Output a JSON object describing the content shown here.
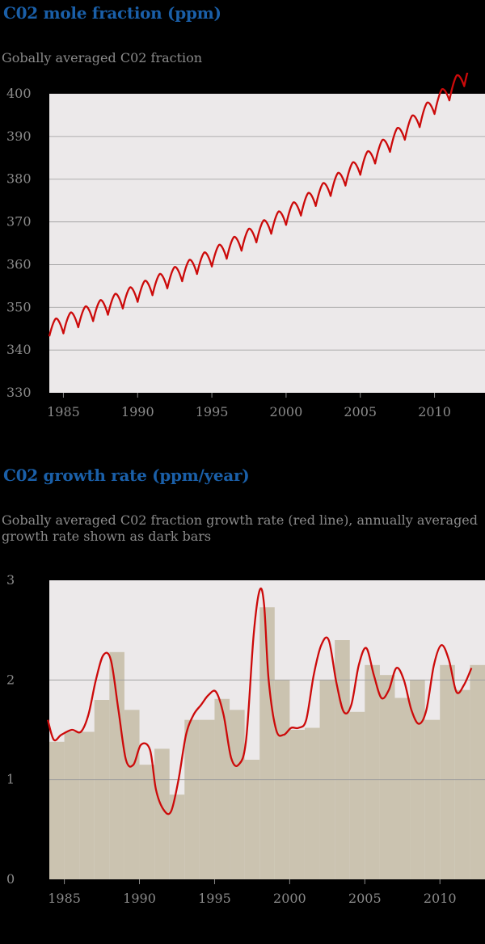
{
  "chart_data": [
    {
      "type": "line",
      "title": "C02 mole fraction (ppm)",
      "subtitle": "Gobally averaged C02 fraction",
      "xlabel": "",
      "ylabel": "",
      "xlim": [
        1984.05,
        2013.4
      ],
      "ylim": [
        330,
        400
      ],
      "yticks": [
        400,
        390,
        380,
        370,
        360,
        350,
        340,
        330
      ],
      "xticks": [
        1985,
        1990,
        1995,
        2000,
        2005,
        2010
      ],
      "grid": true,
      "trend": {
        "start": 1984.0,
        "base": 344.6,
        "coefs": [
          1.4,
          0.006,
          0.0007
        ]
      },
      "seasonal_amplitude": 4.2,
      "series": [
        {
          "color": "#cc0a0a"
        }
      ]
    },
    {
      "type": "bar",
      "title": "C02 growth rate (ppm/year)",
      "subtitle": "Gobally averaged C02 fraction growth rate (red line), annually averaged growth rate shown as dark bars",
      "xlabel": "",
      "ylabel": "",
      "xlim": [
        1984.0,
        2013.0
      ],
      "ylim": [
        0,
        3
      ],
      "yticks": [
        3,
        2,
        1,
        0
      ],
      "xticks": [
        1985,
        1990,
        1995,
        2000,
        2005,
        2010
      ],
      "grid": true,
      "bars": {
        "color": "#cbc3b0",
        "years": [
          1984,
          1985,
          1986,
          1987,
          1988,
          1989,
          1990,
          1991,
          1992,
          1993,
          1994,
          1995,
          1996,
          1997,
          1998,
          1999,
          2000,
          2001,
          2002,
          2003,
          2004,
          2005,
          2006,
          2007,
          2008,
          2009,
          2010,
          2011,
          2012
        ],
        "values": [
          1.38,
          1.48,
          1.48,
          1.8,
          2.28,
          1.7,
          1.15,
          1.31,
          0.85,
          1.6,
          1.6,
          1.81,
          1.7,
          1.2,
          2.73,
          2.0,
          1.5,
          1.52,
          2.0,
          2.4,
          1.68,
          2.15,
          2.05,
          1.82,
          2.0,
          1.6,
          2.15,
          1.9,
          2.15
        ]
      },
      "line": {
        "color": "#cc0a0a",
        "x": [
          1983.9,
          1984.3,
          1984.8,
          1985.5,
          1986.1,
          1986.6,
          1987.1,
          1987.6,
          1988.1,
          1988.6,
          1989.1,
          1989.6,
          1990.1,
          1990.7,
          1991.1,
          1991.6,
          1992.1,
          1992.6,
          1993.1,
          1993.6,
          1994.1,
          1994.6,
          1995.1,
          1995.6,
          1996.1,
          1996.6,
          1997.1,
          1997.6,
          1998.0,
          1998.3,
          1998.6,
          1999.1,
          1999.6,
          2000.1,
          2000.6,
          2001.1,
          2001.6,
          2002.1,
          2002.6,
          2003.1,
          2003.6,
          2004.1,
          2004.6,
          2005.1,
          2005.6,
          2006.1,
          2006.6,
          2007.1,
          2007.6,
          2008.1,
          2008.6,
          2009.1,
          2009.6,
          2010.1,
          2010.6,
          2011.1,
          2011.6,
          2012.1
        ],
        "y": [
          1.6,
          1.4,
          1.45,
          1.5,
          1.48,
          1.65,
          2.0,
          2.25,
          2.2,
          1.7,
          1.2,
          1.15,
          1.35,
          1.3,
          0.9,
          0.7,
          0.68,
          1.0,
          1.45,
          1.65,
          1.75,
          1.85,
          1.88,
          1.65,
          1.22,
          1.15,
          1.4,
          2.45,
          2.9,
          2.75,
          2.0,
          1.5,
          1.45,
          1.52,
          1.52,
          1.6,
          2.05,
          2.35,
          2.4,
          1.98,
          1.68,
          1.75,
          2.15,
          2.32,
          2.05,
          1.82,
          1.9,
          2.12,
          2.0,
          1.7,
          1.56,
          1.7,
          2.15,
          2.35,
          2.2,
          1.88,
          1.95,
          2.12
        ]
      }
    }
  ]
}
